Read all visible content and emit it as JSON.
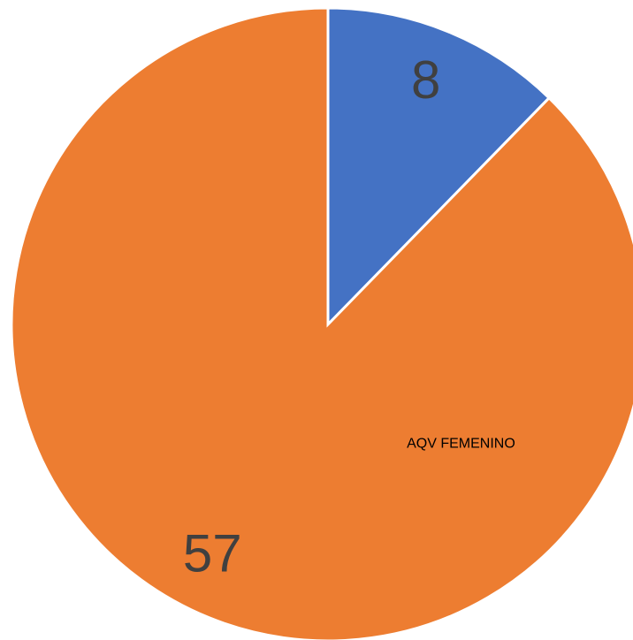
{
  "chart_data": {
    "type": "pie",
    "categories": [
      null,
      "AQV FEMENINO"
    ],
    "values": [
      8,
      57
    ],
    "colors": [
      "#4472c4",
      "#ed7d31"
    ]
  }
}
